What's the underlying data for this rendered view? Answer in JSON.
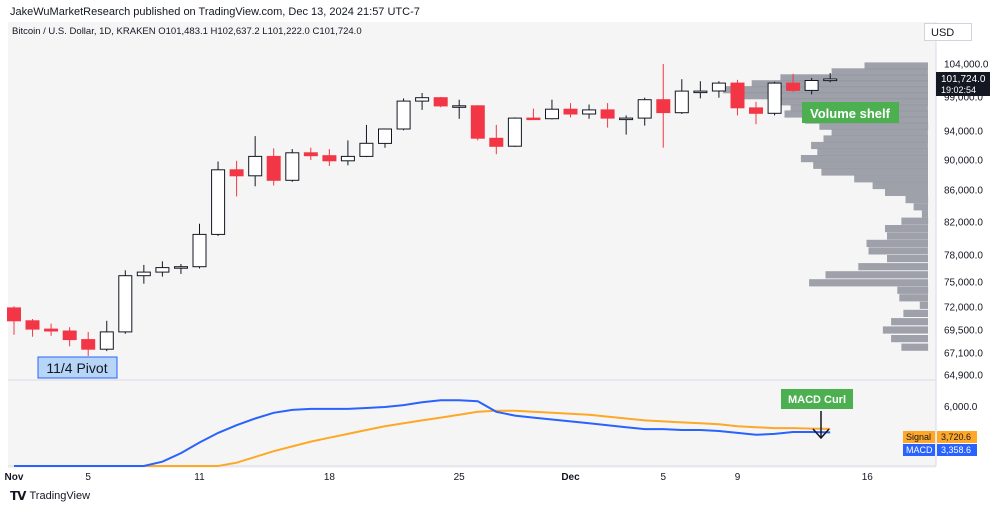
{
  "header": {
    "publisher": "JakeWuMarketResearch published on TradingView.com, Dec 13, 2024 21:57 UTC-7"
  },
  "symbol": {
    "line": "Bitcoin / U.S. Dollar, 1D, KRAKEN  O101,483.1  H102,637.2  L101,222.0  C101,724.0"
  },
  "currency": "USD",
  "price_badge": {
    "value": "101,724.0",
    "time": "19:02:54"
  },
  "annotations": {
    "pivot": "11/4 Pivot",
    "volume_shelf": "Volume shelf",
    "macd_curl": "MACD Curl"
  },
  "macd_labels": {
    "signal_name": "Signal",
    "signal_value": "3,720.6",
    "macd_name": "MACD",
    "macd_value": "3,358.6",
    "axis_tick": "6,000.0"
  },
  "footer": {
    "brand": "TradingView"
  },
  "colors": {
    "up": "#ffffff",
    "down": "#f23645",
    "outline": "#131722",
    "macd": "#2962ff",
    "signal": "#ffa726",
    "volume": "#9598a1"
  },
  "chart_data": {
    "type": "candlestick",
    "title": "Bitcoin / U.S. Dollar, 1D, KRAKEN",
    "y_ticks": [
      "104,000.0",
      "99,000.0",
      "94,000.0",
      "90,000.0",
      "86,000.0",
      "82,000.0",
      "78,000.0",
      "75,000.0",
      "72,000.0",
      "69,500.0",
      "67,100.0",
      "64,900.0"
    ],
    "x_ticks": [
      "Nov",
      "5",
      "11",
      "18",
      "25",
      "Dec",
      "5",
      "9",
      "16"
    ],
    "candles": [
      {
        "o": 71900,
        "h": 72100,
        "l": 69000,
        "c": 70500
      },
      {
        "o": 70500,
        "h": 70700,
        "l": 68800,
        "c": 69600
      },
      {
        "o": 69600,
        "h": 70200,
        "l": 68900,
        "c": 69400
      },
      {
        "o": 69400,
        "h": 69800,
        "l": 67800,
        "c": 68500
      },
      {
        "o": 68500,
        "h": 69300,
        "l": 66800,
        "c": 67500
      },
      {
        "o": 67500,
        "h": 70500,
        "l": 67300,
        "c": 69300
      },
      {
        "o": 69300,
        "h": 76300,
        "l": 69100,
        "c": 75700
      },
      {
        "o": 75700,
        "h": 76900,
        "l": 74800,
        "c": 76100
      },
      {
        "o": 76100,
        "h": 77300,
        "l": 75600,
        "c": 76600
      },
      {
        "o": 76600,
        "h": 77000,
        "l": 75900,
        "c": 76700
      },
      {
        "o": 76700,
        "h": 81800,
        "l": 76500,
        "c": 80500
      },
      {
        "o": 80500,
        "h": 89800,
        "l": 80300,
        "c": 88700
      },
      {
        "o": 88700,
        "h": 89900,
        "l": 85200,
        "c": 87900
      },
      {
        "o": 87900,
        "h": 93300,
        "l": 86500,
        "c": 90500
      },
      {
        "o": 90500,
        "h": 91600,
        "l": 86600,
        "c": 87300
      },
      {
        "o": 87300,
        "h": 91500,
        "l": 87100,
        "c": 91000
      },
      {
        "o": 91000,
        "h": 91700,
        "l": 90000,
        "c": 90600
      },
      {
        "o": 90600,
        "h": 91500,
        "l": 89200,
        "c": 89900
      },
      {
        "o": 89900,
        "h": 92700,
        "l": 89300,
        "c": 90500
      },
      {
        "o": 90500,
        "h": 94900,
        "l": 90400,
        "c": 92300
      },
      {
        "o": 92300,
        "h": 94300,
        "l": 91700,
        "c": 94300
      },
      {
        "o": 94300,
        "h": 98800,
        "l": 94100,
        "c": 98400
      },
      {
        "o": 98400,
        "h": 99600,
        "l": 97100,
        "c": 98900
      },
      {
        "o": 98900,
        "h": 99000,
        "l": 97500,
        "c": 97700
      },
      {
        "o": 97700,
        "h": 98600,
        "l": 95800,
        "c": 97700
      },
      {
        "o": 97700,
        "h": 97800,
        "l": 92700,
        "c": 93000
      },
      {
        "o": 93000,
        "h": 94900,
        "l": 90800,
        "c": 91900
      },
      {
        "o": 91900,
        "h": 96000,
        "l": 91800,
        "c": 95900
      },
      {
        "o": 95900,
        "h": 97300,
        "l": 95600,
        "c": 95800
      },
      {
        "o": 95800,
        "h": 98600,
        "l": 95700,
        "c": 97200
      },
      {
        "o": 97200,
        "h": 98100,
        "l": 96000,
        "c": 96500
      },
      {
        "o": 96500,
        "h": 97900,
        "l": 95800,
        "c": 97100
      },
      {
        "o": 97100,
        "h": 98100,
        "l": 94500,
        "c": 95900
      },
      {
        "o": 95900,
        "h": 96300,
        "l": 93500,
        "c": 95900
      },
      {
        "o": 95900,
        "h": 98900,
        "l": 94800,
        "c": 98600
      },
      {
        "o": 98600,
        "h": 104000,
        "l": 91700,
        "c": 96700
      },
      {
        "o": 96700,
        "h": 101700,
        "l": 96500,
        "c": 99900
      },
      {
        "o": 99900,
        "h": 101400,
        "l": 98800,
        "c": 99900
      },
      {
        "o": 99900,
        "h": 101400,
        "l": 98900,
        "c": 101100
      },
      {
        "o": 101100,
        "h": 101600,
        "l": 96300,
        "c": 97400
      },
      {
        "o": 97400,
        "h": 98300,
        "l": 95000,
        "c": 96600
      },
      {
        "o": 96600,
        "h": 101300,
        "l": 96300,
        "c": 101100
      },
      {
        "o": 101100,
        "h": 102500,
        "l": 99800,
        "c": 100000
      },
      {
        "o": 100000,
        "h": 101900,
        "l": 99400,
        "c": 101500
      },
      {
        "o": 101483.1,
        "h": 102637.2,
        "l": 101222.0,
        "c": 101724.0
      }
    ],
    "volume_profile": [
      {
        "price": 103700,
        "volume": 0.31
      },
      {
        "price": 102800,
        "volume": 0.47
      },
      {
        "price": 101900,
        "volume": 0.72
      },
      {
        "price": 101000,
        "volume": 0.86
      },
      {
        "price": 100100,
        "volume": 1.0
      },
      {
        "price": 99200,
        "volume": 0.9
      },
      {
        "price": 98300,
        "volume": 0.76
      },
      {
        "price": 97400,
        "volume": 0.67
      },
      {
        "price": 96500,
        "volume": 0.7
      },
      {
        "price": 95600,
        "volume": 0.6
      },
      {
        "price": 94700,
        "volume": 0.53
      },
      {
        "price": 93800,
        "volume": 0.47
      },
      {
        "price": 92900,
        "volume": 0.51
      },
      {
        "price": 92000,
        "volume": 0.57
      },
      {
        "price": 91100,
        "volume": 0.54
      },
      {
        "price": 90200,
        "volume": 0.62
      },
      {
        "price": 89300,
        "volume": 0.56
      },
      {
        "price": 88400,
        "volume": 0.52
      },
      {
        "price": 87500,
        "volume": 0.36
      },
      {
        "price": 86600,
        "volume": 0.27
      },
      {
        "price": 85700,
        "volume": 0.21
      },
      {
        "price": 84800,
        "volume": 0.11
      },
      {
        "price": 83900,
        "volume": 0.07
      },
      {
        "price": 83000,
        "volume": 0.03
      },
      {
        "price": 82100,
        "volume": 0.13
      },
      {
        "price": 81200,
        "volume": 0.21
      },
      {
        "price": 80300,
        "volume": 0.2
      },
      {
        "price": 79400,
        "volume": 0.3
      },
      {
        "price": 78500,
        "volume": 0.29
      },
      {
        "price": 77600,
        "volume": 0.2
      },
      {
        "price": 76700,
        "volume": 0.34
      },
      {
        "price": 75800,
        "volume": 0.5
      },
      {
        "price": 74900,
        "volume": 0.58
      },
      {
        "price": 74000,
        "volume": 0.15
      },
      {
        "price": 73100,
        "volume": 0.14
      },
      {
        "price": 72200,
        "volume": 0.04
      },
      {
        "price": 71300,
        "volume": 0.12
      },
      {
        "price": 70400,
        "volume": 0.18
      },
      {
        "price": 69500,
        "volume": 0.22
      },
      {
        "price": 68600,
        "volume": 0.18
      },
      {
        "price": 67700,
        "volume": 0.13
      }
    ],
    "macd": [
      -4200,
      -4000,
      -3700,
      -3300,
      -2800,
      -2300,
      -1500,
      -600,
      300,
      1200,
      2300,
      3300,
      4100,
      4800,
      5400,
      5700,
      5800,
      5800,
      5800,
      5900,
      6000,
      6200,
      6500,
      6700,
      6700,
      6600,
      5500,
      5100,
      4900,
      4700,
      4500,
      4300,
      4100,
      3900,
      3700,
      3700,
      3600,
      3600,
      3500,
      3300,
      3100,
      3200,
      3400,
      3400,
      3358.6
    ],
    "signal": [
      -4600,
      -4500,
      -4300,
      -4100,
      -3900,
      -3700,
      -3300,
      -2900,
      -2400,
      -1900,
      -1200,
      -500,
      200,
      800,
      1400,
      1900,
      2400,
      2800,
      3200,
      3600,
      4000,
      4300,
      4600,
      4900,
      5200,
      5500,
      5600,
      5600,
      5500,
      5400,
      5300,
      5200,
      5000,
      4800,
      4600,
      4500,
      4400,
      4300,
      4200,
      4000,
      3900,
      3800,
      3800,
      3750,
      3720.6
    ]
  }
}
